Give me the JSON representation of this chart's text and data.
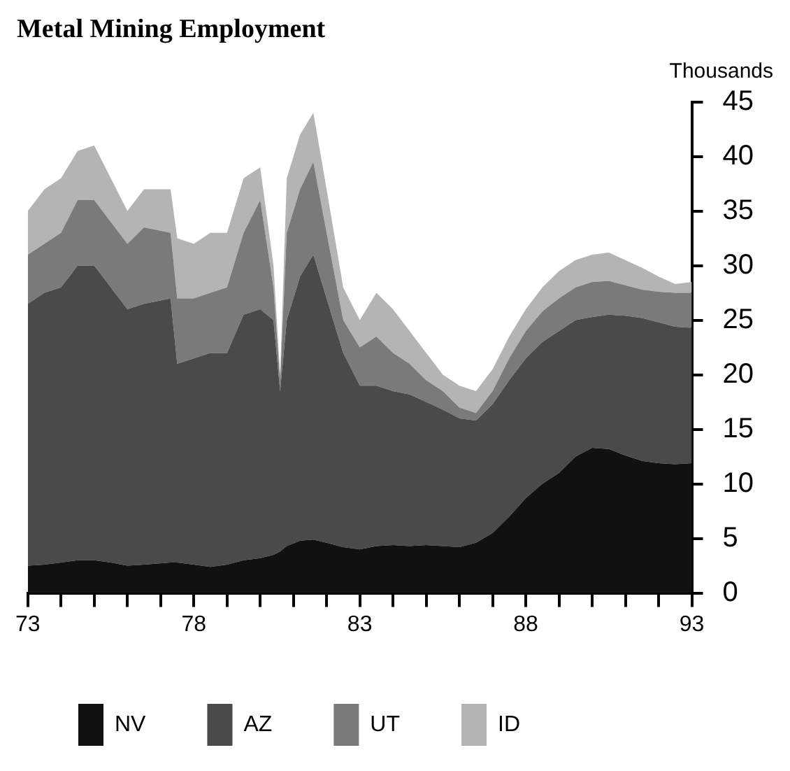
{
  "chart_data": {
    "type": "area",
    "title": "Metal Mining Employment",
    "ylabel": "Thousands",
    "stacked": true,
    "legend": "bottom",
    "x": [
      73,
      73.5,
      74,
      74.5,
      75,
      75.5,
      76,
      76.5,
      77.3,
      77.5,
      78,
      78.5,
      79,
      79.5,
      80,
      80.4,
      80.6,
      80.8,
      81.2,
      81.6,
      82,
      82.5,
      83,
      83.5,
      84,
      84.5,
      85,
      85.5,
      86,
      86.5,
      87,
      87.5,
      88,
      88.5,
      89,
      89.5,
      90,
      90.5,
      91,
      91.5,
      92,
      92.5,
      93
    ],
    "xlim": [
      73,
      93
    ],
    "xticks": [
      73,
      {
        "value": 74,
        "label": null
      },
      {
        "value": 75,
        "label": null
      },
      {
        "value": 76,
        "label": null
      },
      {
        "value": 77,
        "label": null
      },
      78,
      {
        "value": 79,
        "label": null
      },
      {
        "value": 80,
        "label": null
      },
      {
        "value": 81,
        "label": null
      },
      {
        "value": 82,
        "label": null
      },
      83,
      {
        "value": 84,
        "label": null
      },
      {
        "value": 85,
        "label": null
      },
      {
        "value": 86,
        "label": null
      },
      {
        "value": 87,
        "label": null
      },
      88,
      {
        "value": 89,
        "label": null
      },
      {
        "value": 90,
        "label": null
      },
      {
        "value": 91,
        "label": null
      },
      {
        "value": 92,
        "label": null
      },
      93
    ],
    "ylim": [
      0,
      45
    ],
    "yticks": [
      0,
      5,
      10,
      15,
      20,
      25,
      30,
      35,
      40,
      45
    ],
    "series": [
      {
        "name": "NV",
        "color": "#111111",
        "values": [
          2.5,
          2.6,
          2.8,
          3.0,
          3.0,
          2.8,
          2.5,
          2.6,
          2.8,
          2.8,
          2.6,
          2.4,
          2.6,
          3.0,
          3.2,
          3.5,
          3.8,
          4.3,
          4.8,
          4.9,
          4.6,
          4.2,
          4.0,
          4.3,
          4.4,
          4.3,
          4.4,
          4.3,
          4.2,
          4.6,
          5.5,
          7,
          8.7,
          10,
          11,
          12.5,
          13.3,
          13.2,
          12.6,
          12.1,
          11.9,
          11.8,
          11.9
        ]
      },
      {
        "name": "AZ",
        "color": "#4a4a4a",
        "values": [
          24,
          24.9,
          25.2,
          27,
          27,
          25.2,
          23.5,
          23.9,
          24.2,
          18.2,
          18.9,
          19.6,
          19.4,
          22.5,
          22.8,
          21.5,
          14.7,
          20.7,
          24.2,
          26.1,
          22.4,
          17.8,
          15,
          14.7,
          14.1,
          13.9,
          13.1,
          12.5,
          11.8,
          11.2,
          11.8,
          12.5,
          12.8,
          13,
          13,
          12.5,
          12,
          12.3,
          12.8,
          13.1,
          12.9,
          12.6,
          12.4
        ]
      },
      {
        "name": "UT",
        "color": "#7a7a7a",
        "values": [
          4.5,
          4.5,
          5,
          6,
          6,
          6,
          6,
          7,
          6,
          6,
          5.5,
          5.5,
          6,
          7.5,
          10,
          3,
          1,
          8,
          8,
          8.5,
          6,
          3,
          3.5,
          4.5,
          3.5,
          2.8,
          2,
          1.7,
          1,
          0.7,
          1.2,
          2,
          2.5,
          2.8,
          3,
          3,
          3.2,
          3.1,
          2.8,
          2.6,
          2.8,
          3.1,
          3.2
        ]
      },
      {
        "name": "ID",
        "color": "#b4b4b4",
        "values": [
          4,
          5,
          5,
          4.5,
          5,
          4,
          3,
          3.5,
          4,
          5.5,
          5,
          5.5,
          5,
          5,
          3,
          2,
          0.5,
          5,
          5,
          4.5,
          4,
          3,
          2.5,
          4,
          4,
          3,
          2.5,
          1.5,
          2,
          2,
          2,
          2,
          2,
          2.2,
          2.5,
          2.5,
          2.5,
          2.6,
          2.3,
          2,
          1.4,
          0.8,
          1
        ]
      }
    ]
  }
}
